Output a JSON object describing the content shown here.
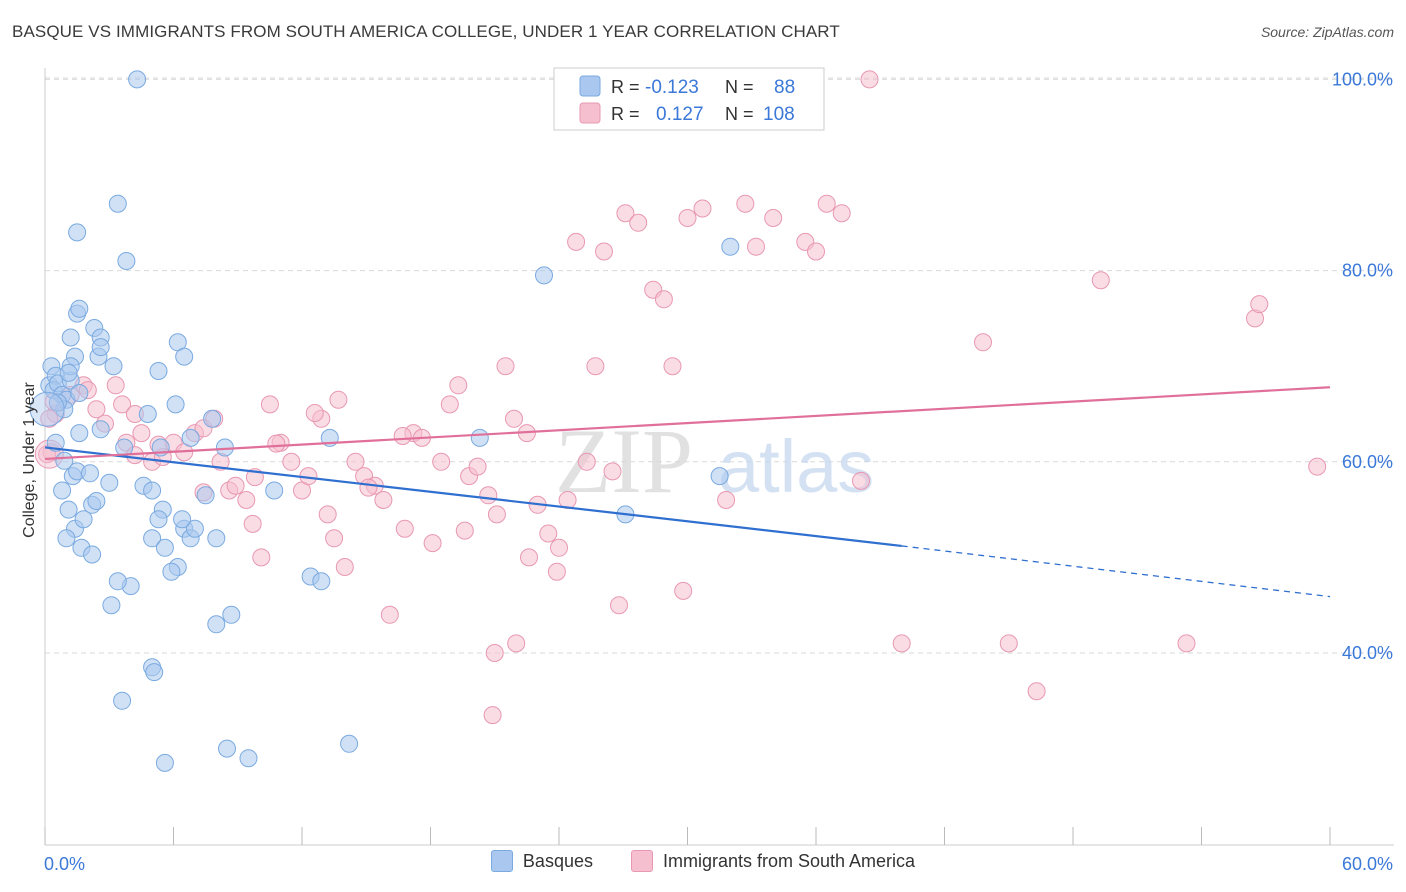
{
  "header": {
    "title": "BASQUE VS IMMIGRANTS FROM SOUTH AMERICA COLLEGE, UNDER 1 YEAR CORRELATION CHART",
    "source": "Source: ZipAtlas.com"
  },
  "watermark": {
    "zip": "ZIP",
    "atlas": "atlas"
  },
  "legend_box": {
    "rows": [
      {
        "r_label": "R =",
        "r_value": "-0.123",
        "n_label": "N =",
        "n_value": "88"
      },
      {
        "r_label": "R =",
        "r_value": "0.127",
        "n_label": "N =",
        "n_value": "108"
      }
    ]
  },
  "bottom_legend": {
    "items": [
      {
        "label": "Basques"
      },
      {
        "label": "Immigrants from South America"
      }
    ]
  },
  "colors": {
    "blue_fill": "#aac8ef",
    "blue_stroke": "#7aaae0",
    "blue_line": "#2f6fcf",
    "pink_fill": "#f5bfd0",
    "pink_stroke": "#e898b2",
    "pink_line": "#e0709a",
    "axis_label": "#3b78d8",
    "grid": "#d9d9d9"
  },
  "chart_data": {
    "type": "scatter",
    "title": "BASQUE VS IMMIGRANTS FROM SOUTH AMERICA COLLEGE, UNDER 1 YEAR CORRELATION CHART",
    "xlabel": "",
    "ylabel": "College, Under 1 year",
    "xlim": [
      0,
      60
    ],
    "ylim": [
      20,
      104
    ],
    "x_tick_labels": [
      "0.0%",
      "60.0%"
    ],
    "y_ticks": [
      40,
      60,
      80,
      100
    ],
    "y_tick_labels": [
      "40.0%",
      "60.0%",
      "80.0%",
      "100.0%"
    ],
    "grid": true,
    "legend_position": "top-center",
    "series": [
      {
        "name": "Basques",
        "color": "#aac8ef",
        "r": -0.123,
        "n": 88,
        "trend": {
          "x_start": 0,
          "y_start": 61.5,
          "x_solid_end": 40.0,
          "y_solid_end": 51.2,
          "x_end": 60,
          "y_end": 45.9
        },
        "points": [
          [
            0.2,
            68
          ],
          [
            0.3,
            70
          ],
          [
            0.5,
            69
          ],
          [
            0.4,
            67.5
          ],
          [
            0.6,
            68.2
          ],
          [
            0.8,
            67
          ],
          [
            1.0,
            66.5
          ],
          [
            1.2,
            68.5
          ],
          [
            0.9,
            65.5
          ],
          [
            1.6,
            67.2
          ],
          [
            0.5,
            62
          ],
          [
            0.8,
            57
          ],
          [
            1.1,
            55
          ],
          [
            1.4,
            53
          ],
          [
            1.7,
            51
          ],
          [
            1.3,
            58.5
          ],
          [
            1.8,
            54
          ],
          [
            2.2,
            55.5
          ],
          [
            1.0,
            52
          ],
          [
            1.5,
            59
          ],
          [
            1.2,
            73
          ],
          [
            1.5,
            75.5
          ],
          [
            1.6,
            76
          ],
          [
            2.3,
            74
          ],
          [
            2.6,
            73
          ],
          [
            2.5,
            71
          ],
          [
            3.2,
            70
          ],
          [
            2.6,
            72
          ],
          [
            1.4,
            71
          ],
          [
            1.2,
            70
          ],
          [
            1.5,
            84
          ],
          [
            3.4,
            87
          ],
          [
            3.8,
            81
          ],
          [
            4.3,
            100
          ],
          [
            5.3,
            69.5
          ],
          [
            6.2,
            72.5
          ],
          [
            6.5,
            71
          ],
          [
            6.1,
            66
          ],
          [
            4.8,
            65
          ],
          [
            3.7,
            61.5
          ],
          [
            4.6,
            57.5
          ],
          [
            5.4,
            61.5
          ],
          [
            5.0,
            57
          ],
          [
            5.5,
            55
          ],
          [
            5.3,
            54
          ],
          [
            5.0,
            52
          ],
          [
            5.6,
            51
          ],
          [
            6.5,
            53
          ],
          [
            6.8,
            52
          ],
          [
            7.0,
            53
          ],
          [
            6.2,
            49
          ],
          [
            5.9,
            48.5
          ],
          [
            7.5,
            56.5
          ],
          [
            6.4,
            54
          ],
          [
            8.0,
            52
          ],
          [
            8.4,
            61.5
          ],
          [
            7.8,
            64.5
          ],
          [
            6.8,
            62.5
          ],
          [
            8.7,
            44
          ],
          [
            8.0,
            43
          ],
          [
            4.0,
            47
          ],
          [
            3.4,
            47.5
          ],
          [
            3.1,
            45
          ],
          [
            5.0,
            38.5
          ],
          [
            5.1,
            38
          ],
          [
            3.6,
            35
          ],
          [
            8.5,
            30
          ],
          [
            9.5,
            29
          ],
          [
            5.6,
            28.5
          ],
          [
            14.2,
            30.5
          ],
          [
            10.7,
            57
          ],
          [
            12.4,
            48
          ],
          [
            12.9,
            47.5
          ],
          [
            13.3,
            62.5
          ],
          [
            20.3,
            62.5
          ],
          [
            23.3,
            79.5
          ],
          [
            32.0,
            82.5
          ],
          [
            31.5,
            58.5
          ],
          [
            27.1,
            54.5
          ],
          [
            1.6,
            63
          ],
          [
            2.1,
            58.8
          ],
          [
            2.6,
            63.4
          ],
          [
            2.4,
            55.9
          ],
          [
            0.6,
            66.2
          ],
          [
            1.1,
            69.3
          ],
          [
            0.9,
            60.1
          ],
          [
            3.0,
            57.8
          ],
          [
            2.2,
            50.3
          ]
        ]
      },
      {
        "name": "Immigrants from South America",
        "color": "#f5bfd0",
        "r": 0.127,
        "n": 108,
        "trend": {
          "x_start": 0,
          "y_start": 60.3,
          "x_end": 60,
          "y_end": 67.8
        },
        "points": [
          [
            0.3,
            61
          ],
          [
            0.5,
            65
          ],
          [
            1.2,
            67
          ],
          [
            1.8,
            68
          ],
          [
            2.0,
            67.5
          ],
          [
            2.4,
            65.5
          ],
          [
            2.8,
            64
          ],
          [
            3.3,
            68
          ],
          [
            3.6,
            66
          ],
          [
            3.8,
            62
          ],
          [
            4.2,
            65
          ],
          [
            4.5,
            63
          ],
          [
            5.0,
            60
          ],
          [
            5.5,
            60.5
          ],
          [
            6.0,
            62
          ],
          [
            6.5,
            61
          ],
          [
            7.0,
            63
          ],
          [
            7.4,
            63.5
          ],
          [
            7.9,
            64.5
          ],
          [
            8.2,
            60
          ],
          [
            8.6,
            57
          ],
          [
            8.9,
            57.5
          ],
          [
            9.4,
            56
          ],
          [
            9.7,
            53.5
          ],
          [
            10.1,
            50
          ],
          [
            10.5,
            66
          ],
          [
            11.0,
            62
          ],
          [
            11.5,
            60
          ],
          [
            12.0,
            57
          ],
          [
            12.3,
            58.5
          ],
          [
            12.9,
            64.5
          ],
          [
            13.2,
            54.5
          ],
          [
            13.5,
            52
          ],
          [
            14.0,
            49
          ],
          [
            14.5,
            60
          ],
          [
            14.9,
            58.5
          ],
          [
            15.4,
            57.5
          ],
          [
            15.8,
            56
          ],
          [
            16.1,
            44
          ],
          [
            16.8,
            53
          ],
          [
            17.2,
            63
          ],
          [
            17.6,
            62.5
          ],
          [
            18.1,
            51.5
          ],
          [
            18.5,
            60
          ],
          [
            18.9,
            66
          ],
          [
            19.3,
            68
          ],
          [
            19.8,
            58.5
          ],
          [
            20.2,
            59.5
          ],
          [
            20.7,
            56.5
          ],
          [
            21.1,
            54.5
          ],
          [
            21.5,
            70
          ],
          [
            21.9,
            64.5
          ],
          [
            22.5,
            63
          ],
          [
            23.0,
            55.5
          ],
          [
            23.5,
            52.5
          ],
          [
            23.9,
            48.5
          ],
          [
            24.4,
            56
          ],
          [
            24.8,
            83
          ],
          [
            25.3,
            60
          ],
          [
            25.7,
            70
          ],
          [
            26.1,
            82
          ],
          [
            26.5,
            59
          ],
          [
            27.1,
            86
          ],
          [
            27.7,
            85
          ],
          [
            28.4,
            78
          ],
          [
            28.9,
            77
          ],
          [
            29.3,
            70
          ],
          [
            30.0,
            85.5
          ],
          [
            30.7,
            86.5
          ],
          [
            31.8,
            56
          ],
          [
            32.7,
            87
          ],
          [
            33.2,
            82.5
          ],
          [
            34.0,
            85.5
          ],
          [
            35.5,
            83
          ],
          [
            36.0,
            82
          ],
          [
            36.5,
            87
          ],
          [
            37.2,
            86
          ],
          [
            38.1,
            58
          ],
          [
            40.0,
            41
          ],
          [
            38.5,
            100
          ],
          [
            43.8,
            72.5
          ],
          [
            45.0,
            41
          ],
          [
            46.3,
            36
          ],
          [
            49.3,
            79
          ],
          [
            53.3,
            41
          ],
          [
            56.5,
            75
          ],
          [
            56.7,
            76.5
          ],
          [
            59.4,
            59.5
          ],
          [
            22.0,
            41
          ],
          [
            21.0,
            40
          ],
          [
            20.9,
            33.5
          ],
          [
            22.6,
            50
          ],
          [
            26.8,
            45
          ],
          [
            13.7,
            66.5
          ],
          [
            5.3,
            61.8
          ],
          [
            7.4,
            56.8
          ],
          [
            9.8,
            58.4
          ],
          [
            4.2,
            60.7
          ],
          [
            12.6,
            65.1
          ],
          [
            19.6,
            52.8
          ],
          [
            15.1,
            57.3
          ],
          [
            24.0,
            51.0
          ],
          [
            10.8,
            61.9
          ],
          [
            16.7,
            62.7
          ],
          [
            29.8,
            46.5
          ],
          [
            0.2,
            64.5
          ],
          [
            0.4,
            66.3
          ],
          [
            0.1,
            60.8
          ]
        ]
      }
    ]
  }
}
